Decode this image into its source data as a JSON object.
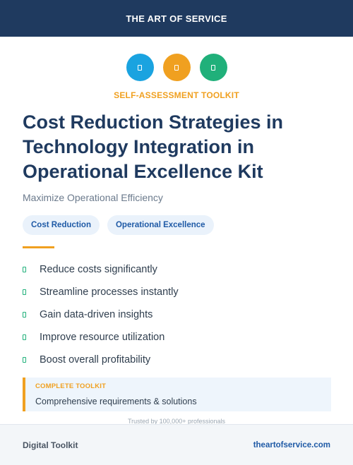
{
  "header": {
    "brand": "THE ART OF SERVICE",
    "background": "#1f3a5f"
  },
  "icons": [
    {
      "name": "document-icon",
      "color": "#1aa3e0"
    },
    {
      "name": "document-icon",
      "color": "#f0a020"
    },
    {
      "name": "document-icon",
      "color": "#20b07a"
    }
  ],
  "eyebrow": {
    "text": "SELF-ASSESSMENT TOOLKIT",
    "color": "#f0a020"
  },
  "title": "Cost Reduction Strategies in Technology Integration in Operational Excellence Kit",
  "subtitle": "Maximize Operational Efficiency",
  "tags": [
    "Cost Reduction",
    "Operational Excellence"
  ],
  "features": [
    "Reduce costs significantly",
    "Streamline processes instantly",
    "Gain data-driven insights",
    "Improve resource utilization",
    "Boost overall profitability"
  ],
  "toolkit": {
    "label": "COMPLETE TOOLKIT",
    "description": "Comprehensive requirements & solutions"
  },
  "trusted": "Trusted by 100,000+ professionals",
  "footer": {
    "left": "Digital Toolkit",
    "right": "theartofservice.com"
  }
}
